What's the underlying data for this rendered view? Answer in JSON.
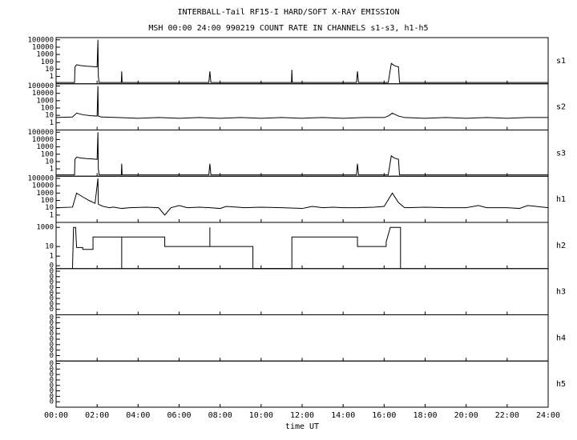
{
  "chart_data": {
    "type": "line",
    "title": "INTERBALL-Tail RF15-I HARD/SOFT X-RAY EMISSION",
    "subtitle": "MSH 00:00 24:00 990219  COUNT RATE IN CHANNELS s1-s3, h1-h5",
    "xlabel": "time UT",
    "xlim": [
      0,
      24
    ],
    "xticks": [
      {
        "value": 0,
        "label": "00:00"
      },
      {
        "value": 2,
        "label": "02:00"
      },
      {
        "value": 4,
        "label": "04:00"
      },
      {
        "value": 6,
        "label": "06:00"
      },
      {
        "value": 8,
        "label": "08:00"
      },
      {
        "value": 10,
        "label": "10:00"
      },
      {
        "value": 12,
        "label": "12:00"
      },
      {
        "value": 14,
        "label": "14:00"
      },
      {
        "value": 16,
        "label": "16:00"
      },
      {
        "value": 18,
        "label": "18:00"
      },
      {
        "value": 20,
        "label": "20:00"
      },
      {
        "value": 22,
        "label": "22:00"
      },
      {
        "value": 24,
        "label": "24:00"
      }
    ],
    "yscale": "log",
    "color": "#000000",
    "panels": [
      {
        "name": "s1",
        "ylim": [
          0.1,
          200000
        ],
        "yticks": [
          100000,
          10000,
          1000,
          100,
          10,
          1
        ],
        "x": [
          0,
          0.9,
          0.92,
          1.0,
          1.2,
          1.5,
          1.8,
          2.0,
          2.04,
          2.06,
          2.1,
          3.18,
          3.2,
          3.22,
          7.45,
          7.5,
          7.55,
          11.48,
          11.5,
          11.52,
          14.65,
          14.7,
          14.75,
          16.2,
          16.35,
          16.5,
          16.7,
          16.75,
          24
        ],
        "values": [
          0.15,
          0.15,
          20,
          40,
          30,
          25,
          22,
          20,
          100000,
          1,
          0.15,
          0.15,
          5,
          0.15,
          0.15,
          5,
          0.15,
          0.15,
          8,
          0.15,
          0.15,
          5,
          0.15,
          0.15,
          60,
          30,
          20,
          0.15,
          0.15
        ]
      },
      {
        "name": "s2",
        "ylim": [
          0.1,
          200000
        ],
        "yticks": [
          100000,
          10000,
          1000,
          100,
          10,
          1
        ],
        "x": [
          0,
          0.8,
          1.0,
          1.3,
          1.7,
          2.0,
          2.04,
          2.06,
          2.2,
          3,
          4,
          5,
          6,
          7,
          8,
          9,
          10,
          11,
          12,
          13,
          14,
          15,
          16,
          16.2,
          16.4,
          16.7,
          17,
          18,
          19,
          20,
          21,
          22,
          23,
          24
        ],
        "values": [
          5,
          6,
          20,
          12,
          9,
          8,
          100000,
          8,
          6,
          5,
          4,
          5,
          4,
          5,
          4,
          5,
          4,
          5,
          4,
          5,
          4,
          5,
          5,
          8,
          20,
          8,
          5,
          4,
          5,
          4,
          5,
          4,
          5,
          5
        ]
      },
      {
        "name": "s3",
        "ylim": [
          0.1,
          200000
        ],
        "yticks": [
          100000,
          10000,
          1000,
          100,
          10,
          1
        ],
        "x": [
          0,
          0.9,
          0.92,
          1.0,
          1.2,
          1.5,
          1.8,
          2.0,
          2.04,
          2.06,
          2.1,
          3.18,
          3.2,
          3.22,
          7.45,
          7.5,
          7.55,
          14.65,
          14.7,
          14.75,
          16.2,
          16.35,
          16.5,
          16.7,
          16.75,
          24
        ],
        "values": [
          0.15,
          0.15,
          20,
          40,
          30,
          25,
          22,
          20,
          100000,
          1,
          0.15,
          0.15,
          5,
          0.15,
          0.15,
          5,
          0.15,
          0.15,
          5,
          0.15,
          0.15,
          60,
          30,
          20,
          0.15,
          0.15
        ]
      },
      {
        "name": "h1",
        "ylim": [
          0.1,
          200000
        ],
        "yticks": [
          100000,
          10000,
          1000,
          100,
          10,
          1
        ],
        "x": [
          0,
          0.8,
          1.0,
          1.3,
          1.6,
          1.9,
          2.04,
          2.06,
          2.3,
          2.6,
          2.8,
          3.2,
          3.6,
          4.4,
          5.0,
          5.3,
          5.6,
          6.0,
          6.4,
          7.0,
          7.5,
          8.0,
          8.3,
          9.2,
          10,
          11,
          12,
          12.5,
          13,
          13.5,
          14,
          14.7,
          15.5,
          16,
          16.4,
          16.7,
          17,
          18,
          19,
          20,
          20.6,
          21,
          22,
          22.6,
          23,
          24
        ],
        "values": [
          10,
          12,
          1000,
          300,
          100,
          40,
          100000,
          30,
          15,
          10,
          12,
          8,
          10,
          12,
          10,
          1,
          10,
          20,
          10,
          12,
          10,
          8,
          15,
          10,
          12,
          10,
          8,
          15,
          10,
          12,
          10,
          10,
          12,
          15,
          1000,
          50,
          10,
          12,
          10,
          10,
          20,
          10,
          10,
          8,
          20,
          10
        ]
      },
      {
        "name": "h2",
        "ylim": [
          0.05,
          3300
        ],
        "yticks": [
          1000,
          10,
          1,
          {
            "value": 0.1,
            "label": "0"
          }
        ],
        "x": [
          0.8,
          0.85,
          0.95,
          1.0,
          1.3,
          1.3,
          1.8,
          1.8,
          3.2,
          3.2,
          3.2,
          5.3,
          5.3,
          7.5,
          7.5,
          7.5,
          9.6,
          9.6,
          11.5,
          11.5,
          14.7,
          14.7,
          16.1,
          16.1,
          16.3,
          16.5,
          16.8,
          16.8
        ],
        "values": [
          0.05,
          1000,
          1000,
          8,
          8,
          5,
          5,
          100,
          100,
          0.05,
          100,
          100,
          10,
          10,
          1000,
          10,
          10,
          0.05,
          0.05,
          100,
          100,
          10,
          10,
          30,
          1000,
          1000,
          1000,
          0.05
        ]
      },
      {
        "name": "h3",
        "ylim": [
          1e-08,
          3
        ],
        "yticks": [
          {
            "value": 1,
            "label": "0"
          },
          {
            "value": 0.1,
            "label": "0"
          },
          {
            "value": 0.01,
            "label": "0"
          },
          {
            "value": 0.001,
            "label": "0"
          },
          {
            "value": 0.0001,
            "label": "0"
          },
          {
            "value": 1e-05,
            "label": "0"
          },
          {
            "value": 1e-06,
            "label": "0"
          },
          {
            "value": 1e-07,
            "label": "0"
          }
        ]
      },
      {
        "name": "h4",
        "ylim": [
          1e-08,
          3
        ],
        "yticks": [
          {
            "value": 1,
            "label": "0"
          },
          {
            "value": 0.1,
            "label": "0"
          },
          {
            "value": 0.01,
            "label": "0"
          },
          {
            "value": 0.001,
            "label": "0"
          },
          {
            "value": 0.0001,
            "label": "0"
          },
          {
            "value": 1e-05,
            "label": "0"
          },
          {
            "value": 1e-06,
            "label": "0"
          },
          {
            "value": 1e-07,
            "label": "0"
          }
        ]
      },
      {
        "name": "h5",
        "ylim": [
          1e-08,
          3
        ],
        "yticks": [
          {
            "value": 1,
            "label": "0"
          },
          {
            "value": 0.1,
            "label": "0"
          },
          {
            "value": 0.01,
            "label": "0"
          },
          {
            "value": 0.001,
            "label": "0"
          },
          {
            "value": 0.0001,
            "label": "0"
          },
          {
            "value": 1e-05,
            "label": "0"
          },
          {
            "value": 1e-06,
            "label": "0"
          },
          {
            "value": 1e-07,
            "label": "0"
          }
        ]
      }
    ]
  }
}
